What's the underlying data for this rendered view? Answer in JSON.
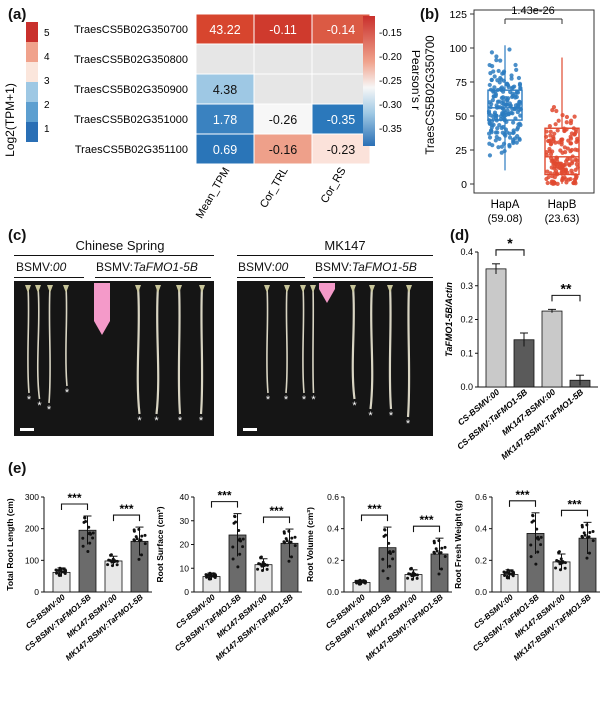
{
  "panels": {
    "a": "(a)",
    "b": "(b)",
    "c": "(c)",
    "d": "(d)",
    "e": "(e)"
  },
  "heatmap": {
    "left_scale_label": "Log2(TPM+1)",
    "left_scale_ticks": [
      "5",
      "4",
      "3",
      "2",
      "1"
    ],
    "right_scale_label": "Pearson's r",
    "right_scale_ticks": [
      "-0.15",
      "-0.20",
      "-0.25",
      "-0.30",
      "-0.35"
    ],
    "genes": [
      "TraesCS5B02G350700",
      "TraesCS5B02G350800",
      "TraesCS5B02G350900",
      "TraesCS5B02G351000",
      "TraesCS5B02G351100"
    ],
    "columns": [
      "Mean_TPM",
      "Cor_TRL",
      "Cor_RS"
    ],
    "cells": [
      [
        {
          "text": "43.22",
          "color": "#d7452e"
        },
        {
          "text": "-0.11",
          "color": "#cf3a2d"
        },
        {
          "text": "-0.14",
          "color": "#db5a44"
        }
      ],
      [
        {
          "text": "",
          "color": "#e6e6e6"
        },
        {
          "text": "",
          "color": "#e6e6e6"
        },
        {
          "text": "",
          "color": "#e6e6e6"
        }
      ],
      [
        {
          "text": "4.38",
          "color": "#9ec8e4"
        },
        {
          "text": "",
          "color": "#e6e6e6"
        },
        {
          "text": "",
          "color": "#e6e6e6"
        }
      ],
      [
        {
          "text": "1.78",
          "color": "#3a82c0"
        },
        {
          "text": "-0.26",
          "color": "#f7f7f7"
        },
        {
          "text": "-0.35",
          "color": "#2b78bb"
        }
      ],
      [
        {
          "text": "0.69",
          "color": "#2a75b8"
        },
        {
          "text": "-0.16",
          "color": "#eea08a"
        },
        {
          "text": "-0.23",
          "color": "#fbe2da"
        }
      ]
    ]
  },
  "boxplot": {
    "ylabel": "TraesCS5B02G350700",
    "yticks": [
      "0",
      "25",
      "50",
      "75",
      "100",
      "125"
    ],
    "pvalue": "1.43e-26",
    "groups": [
      {
        "name": "HapA",
        "mean": "(59.08)",
        "color": "#2b7bc0"
      },
      {
        "name": "HapB",
        "mean": "(23.63)",
        "color": "#e0492f"
      }
    ]
  },
  "photos": {
    "left_title": "Chinese Spring",
    "right_title": "MK147",
    "control_label": "BSMV:",
    "control_italic": "00",
    "treat_label": "BSMV:",
    "treat_italic": "TaFMO1-5B",
    "asterisk": "*"
  },
  "chart_data": [
    {
      "type": "bar",
      "panel": "d",
      "ylabel": "TaFMO1-5B/Actin",
      "categories": [
        "CS-BSMV:00",
        "CS-BSMV:TaFMO1-5B",
        "MK147-BSMV:00",
        "MK147-BSMV:TaFMO1-5B"
      ],
      "values": [
        0.35,
        0.14,
        0.225,
        0.02
      ],
      "errors": [
        0.015,
        0.02,
        0.005,
        0.015
      ],
      "colors": [
        "#c9c9c9",
        "#5a5a5a",
        "#c9c9c9",
        "#5a5a5a"
      ],
      "yticks": [
        "0.0",
        "0.1",
        "0.2",
        "0.3",
        "0.4"
      ],
      "ylim": [
        0,
        0.4
      ],
      "significance": [
        "*",
        "**"
      ]
    },
    {
      "type": "bar",
      "panel": "e",
      "ylabel": "Total Root Length (cm)",
      "categories": [
        "CS-BSMV:00",
        "CS-BSMV:TaFMO1-5B",
        "MK147-BSMV:00",
        "MK147-BSMV:TaFMO1-5B"
      ],
      "values": [
        62,
        195,
        98,
        160
      ],
      "errors": [
        14,
        45,
        15,
        45
      ],
      "yticks": [
        "0",
        "100",
        "200",
        "300"
      ],
      "ylim": [
        0,
        300
      ],
      "significance": [
        "***",
        "***"
      ]
    },
    {
      "type": "bar",
      "panel": "e",
      "ylabel": "Root Surface (cm²)",
      "categories": [
        "CS-BSMV:00",
        "CS-BSMV:TaFMO1-5B",
        "MK147-BSMV:00",
        "MK147-BSMV:TaFMO1-5B"
      ],
      "values": [
        6.5,
        24,
        11.5,
        20.5
      ],
      "errors": [
        1.5,
        9,
        2.5,
        6
      ],
      "yticks": [
        "0",
        "10",
        "20",
        "30",
        "40"
      ],
      "ylim": [
        0,
        40
      ],
      "significance": [
        "***",
        "***"
      ]
    },
    {
      "type": "bar",
      "panel": "e",
      "ylabel": "Root Volume (cm³)",
      "categories": [
        "CS-BSMV:00",
        "CS-BSMV:TaFMO1-5B",
        "MK147-BSMV:00",
        "MK147-BSMV:TaFMO1-5B"
      ],
      "values": [
        0.06,
        0.28,
        0.11,
        0.24
      ],
      "errors": [
        0.015,
        0.13,
        0.03,
        0.1
      ],
      "yticks": [
        "0.0",
        "0.2",
        "0.4",
        "0.6"
      ],
      "ylim": [
        0,
        0.6
      ],
      "significance": [
        "***",
        "***"
      ]
    },
    {
      "type": "bar",
      "panel": "e",
      "ylabel": "Root Fresh Weight (g)",
      "categories": [
        "CS-BSMV:00",
        "CS-BSMV:TaFMO1-5B",
        "MK147-BSMV:00",
        "MK147-BSMV:TaFMO1-5B"
      ],
      "values": [
        0.11,
        0.37,
        0.19,
        0.34
      ],
      "errors": [
        0.03,
        0.13,
        0.05,
        0.1
      ],
      "yticks": [
        "0.0",
        "0.2",
        "0.4",
        "0.6"
      ],
      "ylim": [
        0,
        0.6
      ],
      "significance": [
        "***",
        "***"
      ]
    }
  ]
}
